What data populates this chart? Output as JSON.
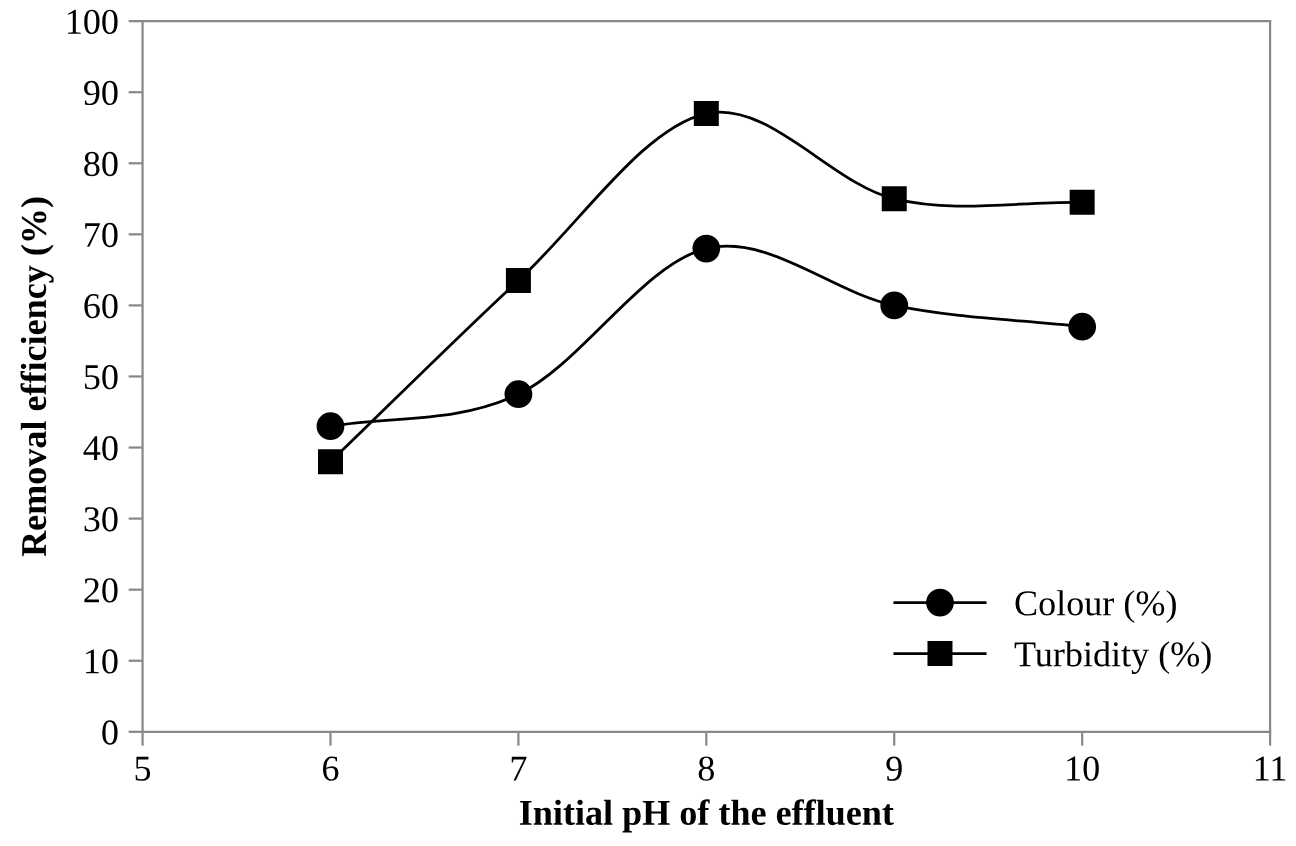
{
  "chart_data": {
    "type": "line",
    "xlabel": "Initial pH of the effluent",
    "ylabel": "Removal efficiency (%)",
    "x": [
      6,
      7,
      8,
      9,
      10
    ],
    "series": [
      {
        "name": "Colour (%)",
        "color": "#000000",
        "marker": "circle",
        "values": [
          43,
          47.5,
          68,
          60,
          57
        ]
      },
      {
        "name": "Turbidity (%)",
        "color": "#000000",
        "marker": "square",
        "values": [
          38,
          63.5,
          87,
          75,
          74.5
        ]
      }
    ],
    "xlim": [
      5,
      11
    ],
    "xticks": [
      5,
      6,
      7,
      8,
      9,
      10,
      11
    ],
    "ylim": [
      0,
      100
    ],
    "yticks": [
      0,
      10,
      20,
      30,
      40,
      50,
      60,
      70,
      80,
      90,
      100
    ],
    "grid": false,
    "legend": "bottom right",
    "line_style": "solid"
  }
}
